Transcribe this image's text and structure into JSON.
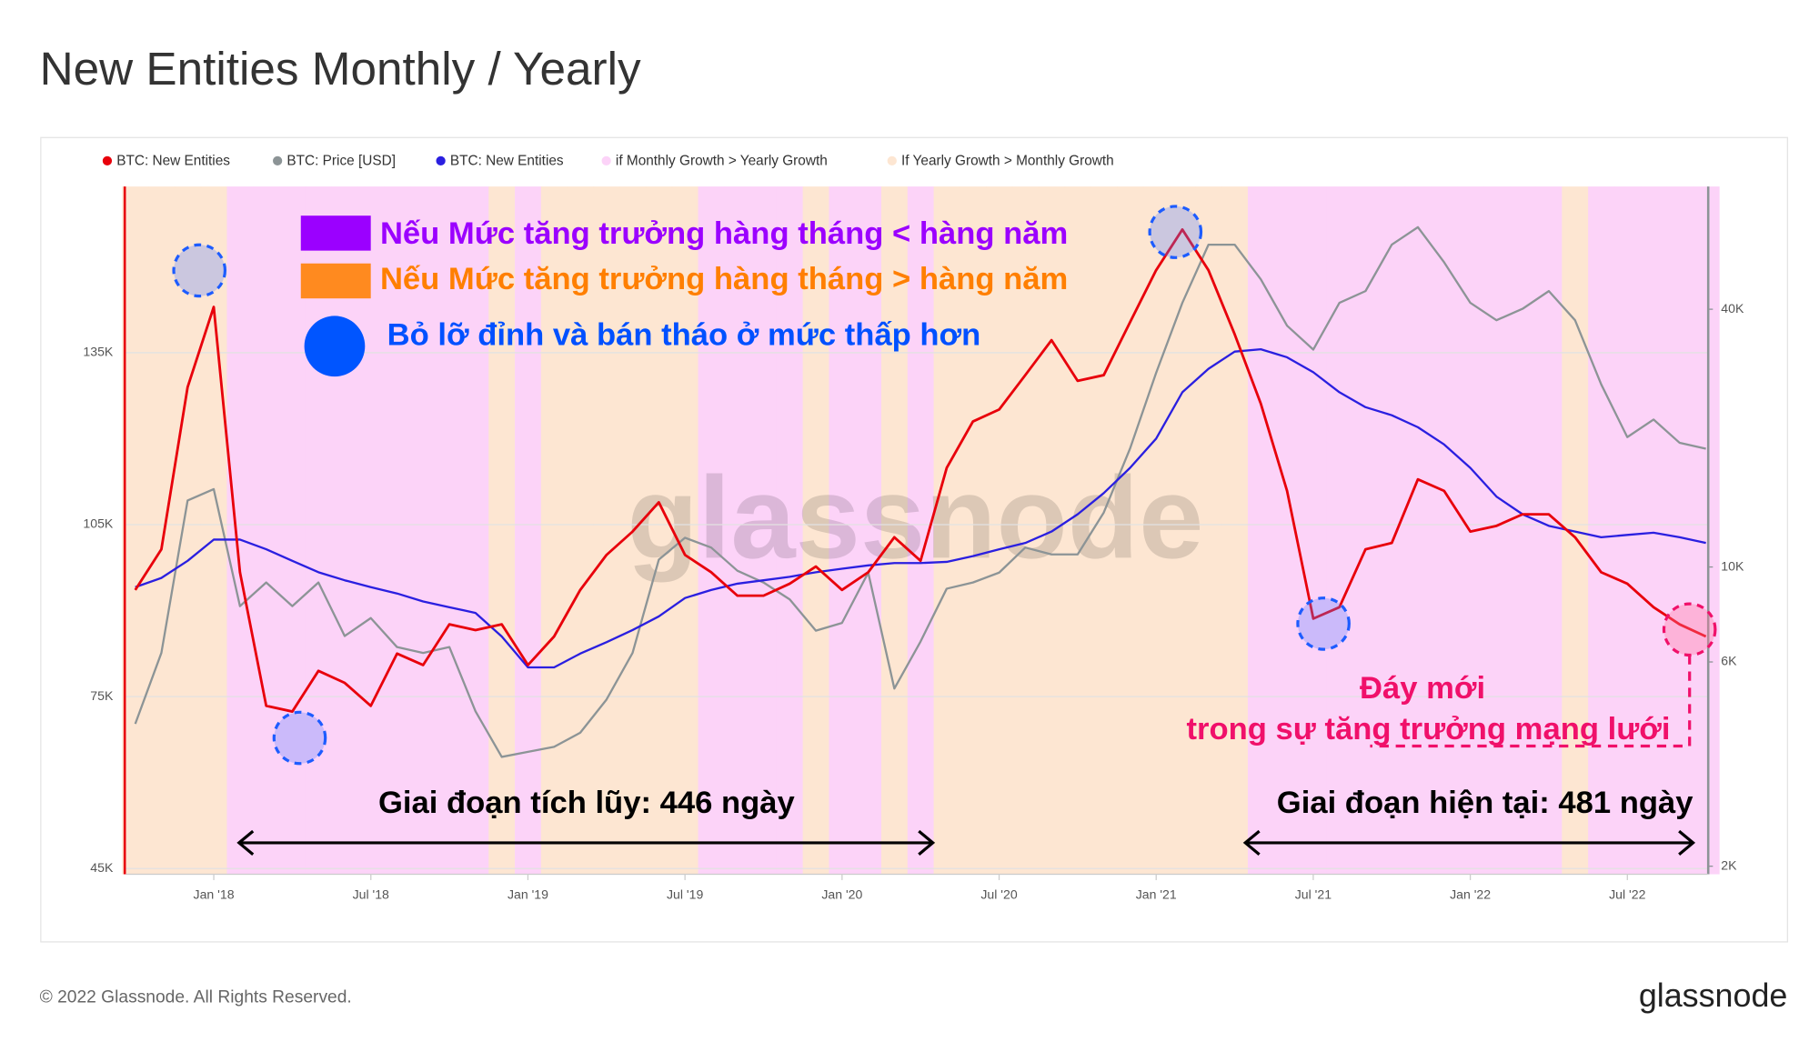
{
  "title": "New Entities Monthly / Yearly",
  "footer": "© 2022 Glassnode. All Rights Reserved.",
  "logo": "glassnode",
  "chart_data": {
    "type": "line",
    "watermark": "glassnode",
    "categories": [
      null,
      null,
      null,
      "Jan '18",
      null,
      null,
      null,
      null,
      null,
      "Jul '18",
      null,
      null,
      null,
      null,
      null,
      "Jan '19",
      null,
      null,
      null,
      null,
      null,
      "Jul '19",
      null,
      null,
      null,
      null,
      null,
      "Jan '20",
      null,
      null,
      null,
      null,
      null,
      "Jul '20",
      null,
      null,
      null,
      null,
      null,
      "Jan '21",
      null,
      null,
      null,
      null,
      null,
      "Jul '21",
      null,
      null,
      null,
      null,
      null,
      "Jan '22",
      null,
      null,
      null,
      null,
      null,
      "Jul '22",
      null,
      null,
      null
    ],
    "series": [
      {
        "name": "BTC: New Entities",
        "color": "#e8000b",
        "axis": "y",
        "values": [
          93600,
          100700,
          129000,
          143000,
          96700,
          73400,
          72400,
          79500,
          77400,
          73400,
          82500,
          80500,
          87600,
          86600,
          87600,
          80500,
          85500,
          93600,
          99700,
          103800,
          108900,
          99700,
          96700,
          92600,
          92600,
          94700,
          97700,
          93600,
          96700,
          102800,
          98700,
          114900,
          123000,
          125100,
          131100,
          137200,
          130100,
          131100,
          140300,
          149400,
          156500,
          149400,
          138200,
          126100,
          110900,
          88600,
          90600,
          100700,
          101800,
          112900,
          110900,
          103800,
          104800,
          106800,
          106800,
          102800,
          96700,
          94700,
          90600,
          87600,
          85500
        ]
      },
      {
        "name": "BTC: Price [USD]",
        "color": "#8c9496",
        "axis": "y2",
        "values": [
          4300,
          6300,
          14300,
          15200,
          8100,
          9200,
          8100,
          9200,
          6900,
          7600,
          6500,
          6300,
          6500,
          4600,
          3600,
          3700,
          3800,
          4100,
          4900,
          6300,
          10400,
          11700,
          11100,
          9800,
          9200,
          8400,
          7100,
          7400,
          9700,
          5200,
          6700,
          8900,
          9200,
          9700,
          11100,
          10700,
          10700,
          13400,
          18900,
          28400,
          41400,
          56600,
          56600,
          47000,
          36600,
          32200,
          41400,
          44100,
          56600,
          62200,
          51500,
          41400,
          37700,
          40100,
          44100,
          37700,
          26700,
          20100,
          22100,
          19500,
          18900
        ]
      },
      {
        "name": "BTC: New Entities",
        "color": "#2a1fe0",
        "axis": "y",
        "values": [
          94100,
          95700,
          98700,
          102400,
          102400,
          100700,
          98700,
          96700,
          95300,
          94100,
          93000,
          91600,
          90600,
          89600,
          85500,
          80100,
          80100,
          82500,
          84500,
          86600,
          89000,
          92200,
          93600,
          94700,
          95300,
          95900,
          96700,
          97300,
          97900,
          98300,
          98300,
          98500,
          99500,
          100700,
          101800,
          103800,
          106800,
          110500,
          114900,
          120000,
          128100,
          132200,
          135200,
          135600,
          134200,
          131600,
          128100,
          125500,
          124100,
          122000,
          119000,
          114900,
          109900,
          106800,
          104800,
          103800,
          102800,
          103200,
          103600,
          102800,
          101800
        ]
      },
      {
        "name": "if Monthly Growth > Yearly Growth",
        "color": "#fcd3f8"
      },
      {
        "name": "If Yearly Growth > Monthly Growth",
        "color": "#fde6d2"
      }
    ],
    "background": [
      4,
      4,
      4,
      4,
      3,
      3,
      3,
      3,
      3,
      3,
      3,
      3,
      3,
      3,
      4,
      3,
      4,
      4,
      4,
      4,
      4,
      4,
      3,
      3,
      3,
      3,
      4,
      3,
      3,
      4,
      3,
      4,
      4,
      4,
      4,
      4,
      4,
      4,
      4,
      4,
      4,
      4,
      4,
      3,
      3,
      3,
      3,
      3,
      3,
      3,
      3,
      3,
      3,
      3,
      3,
      4,
      3,
      3,
      3,
      3,
      3
    ],
    "ylim": [
      44000,
      164000
    ],
    "yticks": [
      {
        "value": 45000,
        "label": "45K"
      },
      {
        "value": 75000,
        "label": "75K"
      },
      {
        "value": 105000,
        "label": "105K"
      },
      {
        "value": 135000,
        "label": "135K"
      }
    ],
    "y2lim": [
      1915,
      77400
    ],
    "y2log": true,
    "y2ticks": [
      {
        "value": 2000,
        "label": "2K"
      },
      {
        "value": 6000,
        "label": "6K"
      },
      {
        "value": 10000,
        "label": "10K"
      },
      {
        "value": 40000,
        "label": "40K"
      }
    ],
    "grid": true,
    "annotations": {
      "legend_purple": "Nếu Mức tăng trưởng hàng tháng < hàng năm",
      "legend_orange": "Nếu Mức tăng trưởng hàng tháng > hàng năm",
      "legend_blue": "Bỏ lỡ đỉnh và bán tháo ở mức thấp hơn",
      "phase_accumulation": "Giai đoạn tích lũy: 446 ngày",
      "phase_current": "Giai đoạn hiện tại: 481 ngày",
      "new_low_1": "Đáy mới",
      "new_low_2": "trong sự tăng trưởng mạng lưới"
    }
  }
}
